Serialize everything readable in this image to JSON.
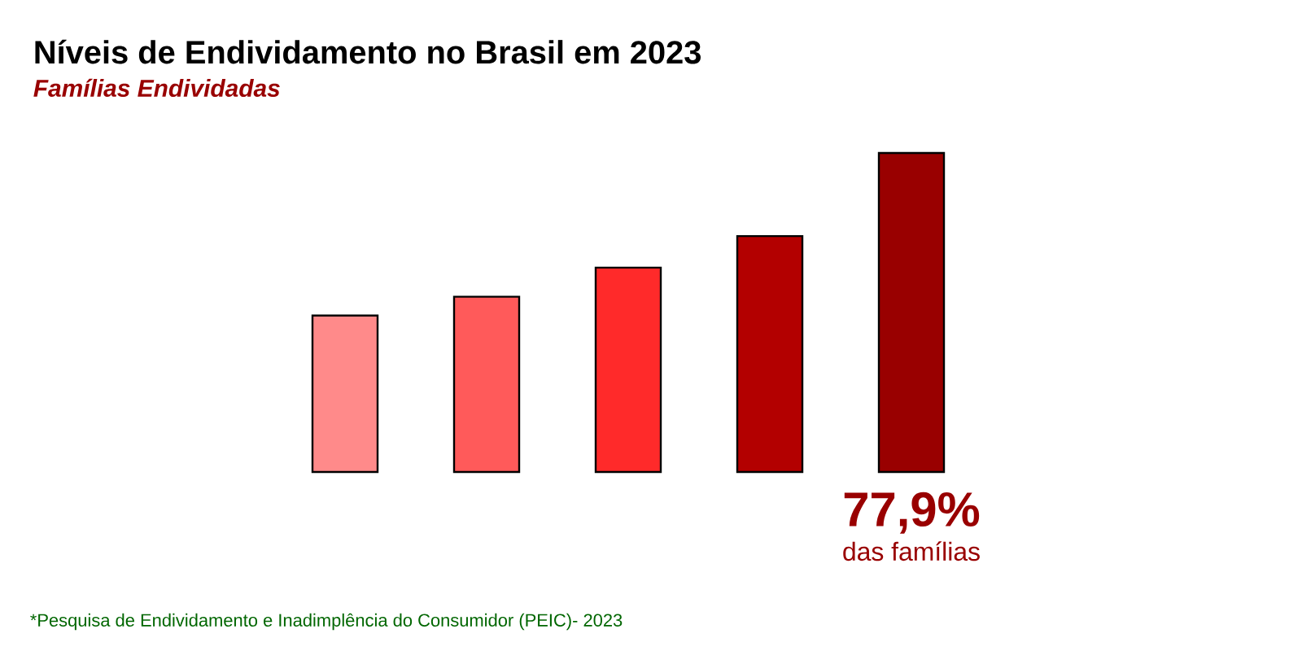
{
  "chart_data": {
    "type": "bar",
    "title": "Níveis de Endividamento no Brasil em 2023",
    "subtitle": "Famílias Endividadas",
    "categories": [
      null,
      null,
      null,
      null,
      null
    ],
    "values": [
      38.2,
      42.8,
      49.9,
      57.6,
      77.9
    ],
    "colors": [
      "#ff8a8a",
      "#ff5a5a",
      "#ff2a2a",
      "#b30000",
      "#990000"
    ],
    "value_labels": [
      null,
      null,
      null,
      null,
      "77,9%"
    ],
    "tick_labels": false,
    "annotations": [
      "das famílias",
      "*Pesquisa de Endividamento e Inadimplência do Consumidor (PEIC)- 2023"
    ]
  }
}
